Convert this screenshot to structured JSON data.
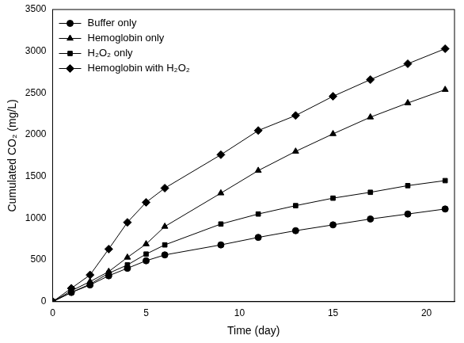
{
  "chart_data": {
    "type": "line",
    "x_label": "Time (day)",
    "y_label": "Cumulated CO₂ (mg/L)",
    "x": [
      0,
      1,
      2,
      3,
      4,
      5,
      6,
      9,
      11,
      13,
      15,
      17,
      19,
      21
    ],
    "series": [
      {
        "name": "Buffer only",
        "color": "#000000",
        "marker": "circle",
        "values": [
          0,
          110,
          200,
          310,
          400,
          490,
          560,
          680,
          770,
          850,
          920,
          990,
          1050,
          1110
        ]
      },
      {
        "name": "Hemoglobin only",
        "color": "#000000",
        "marker": "triangle",
        "values": [
          0,
          130,
          240,
          360,
          530,
          690,
          900,
          1300,
          1570,
          1800,
          2010,
          2210,
          2380,
          2540
        ]
      },
      {
        "name": "H₂O₂ only",
        "color": "#000000",
        "marker": "square",
        "values": [
          0,
          110,
          210,
          340,
          440,
          570,
          680,
          930,
          1050,
          1150,
          1240,
          1310,
          1390,
          1450
        ]
      },
      {
        "name": "Hemoglobin with H₂O₂",
        "color": "#000000",
        "marker": "diamond",
        "values": [
          0,
          160,
          320,
          630,
          950,
          1190,
          1360,
          1760,
          2050,
          2230,
          2460,
          2660,
          2850,
          3030
        ]
      }
    ],
    "xlim": [
      0,
      21.5
    ],
    "xticks": [
      0,
      5,
      10,
      15,
      20
    ],
    "ylim": [
      0,
      3500
    ],
    "yticks": [
      0,
      500,
      1000,
      1500,
      2000,
      2500,
      3000,
      3500
    ],
    "grid": false,
    "legend": "top-left"
  }
}
